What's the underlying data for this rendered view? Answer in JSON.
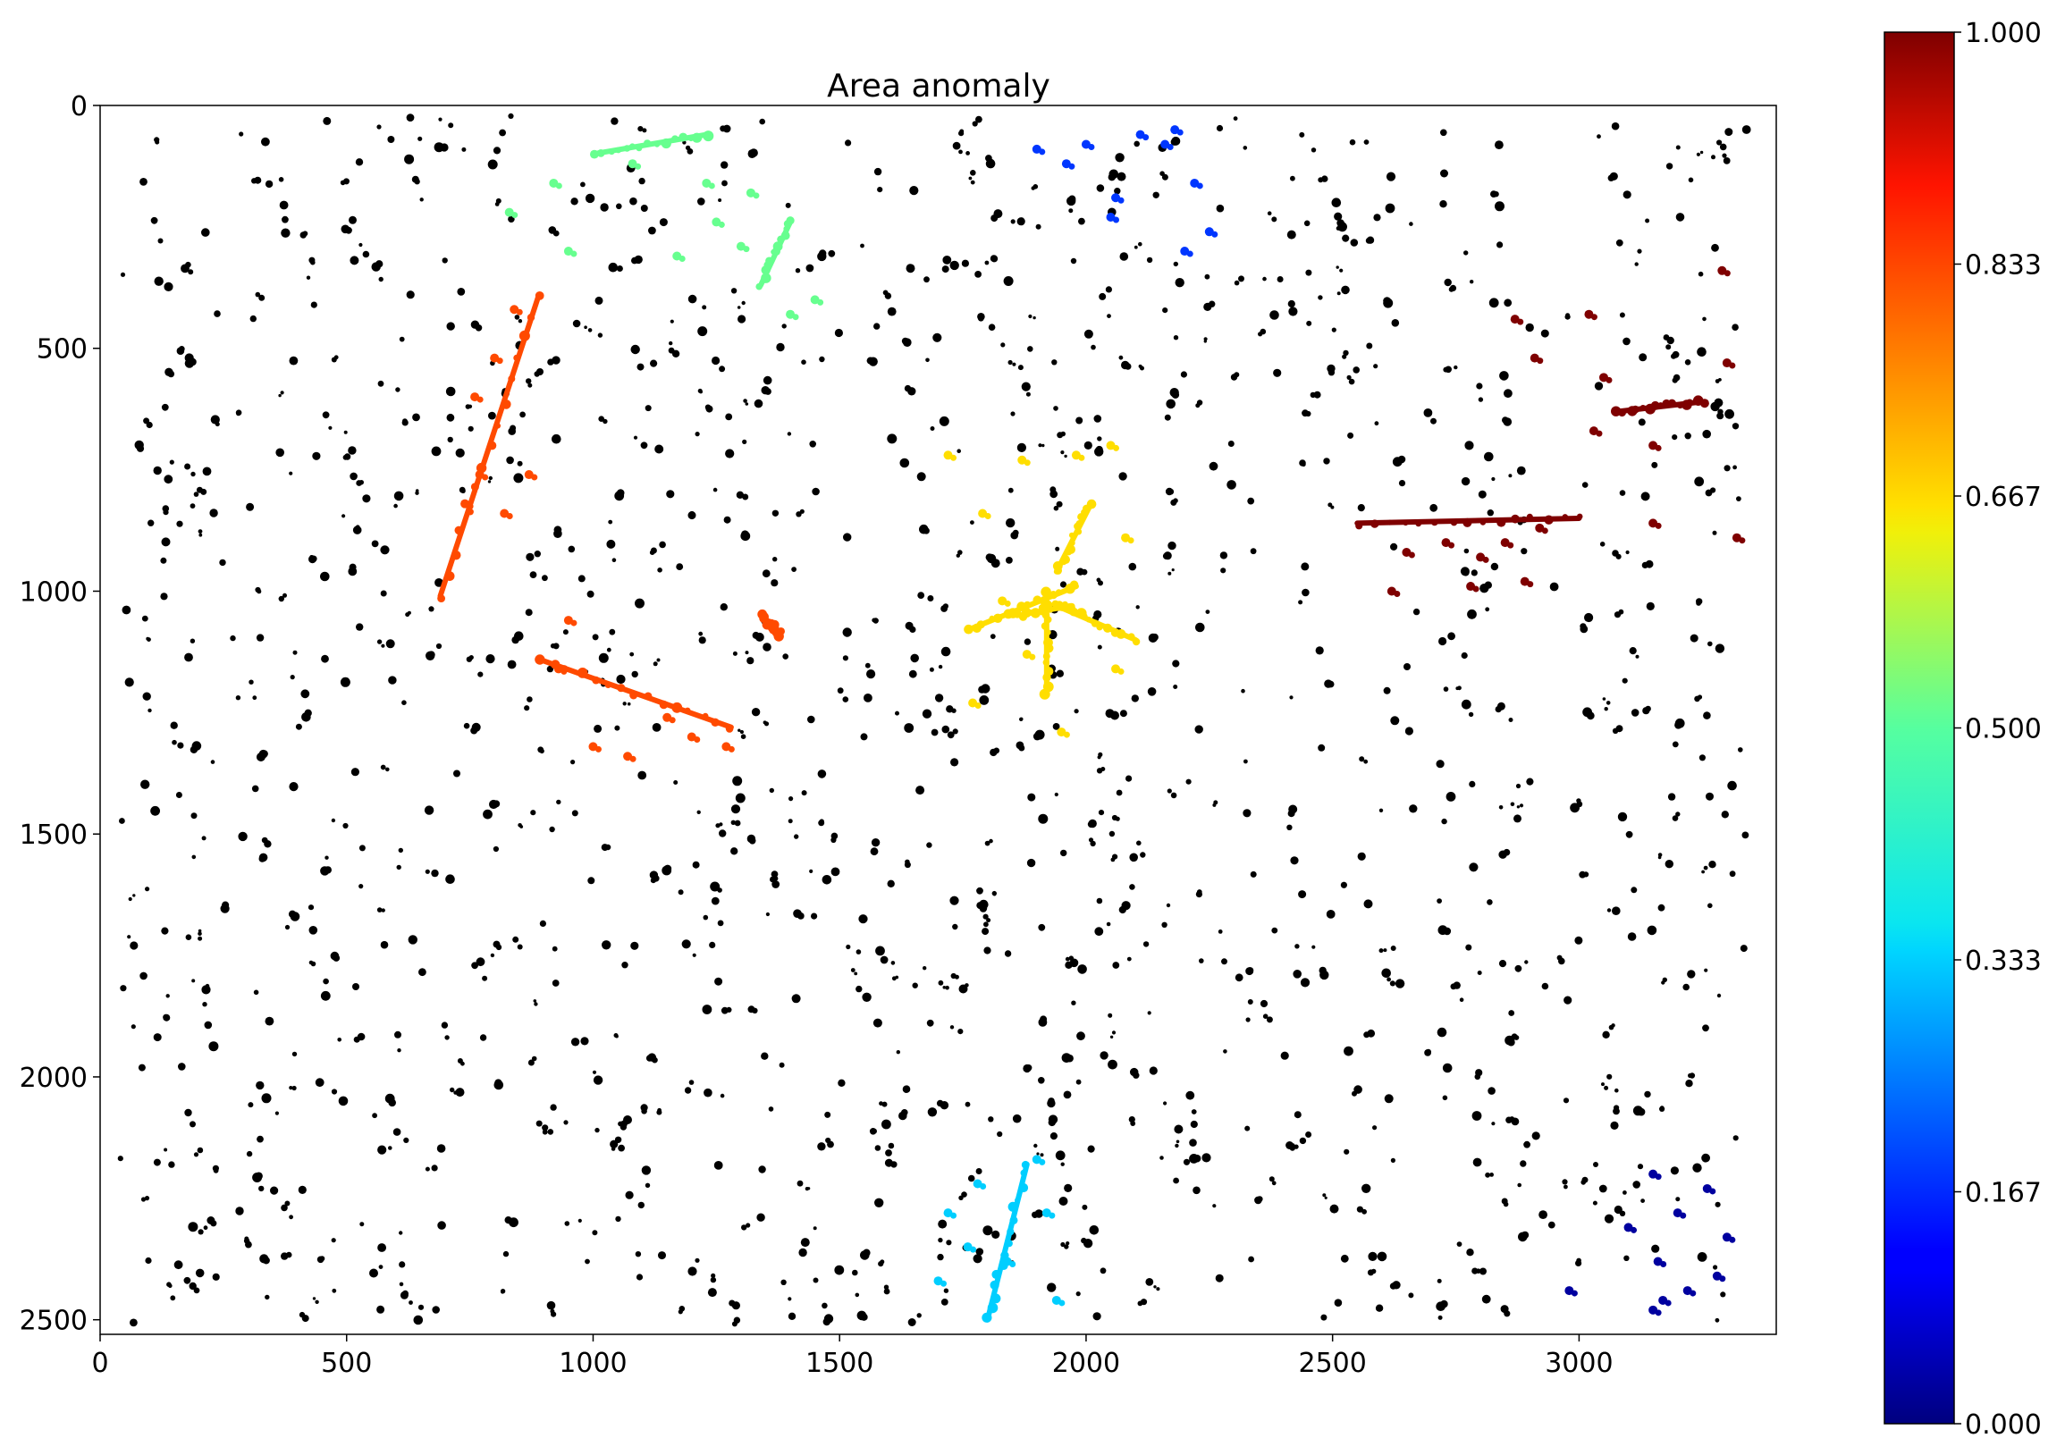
{
  "chart_data": {
    "type": "scatter",
    "title": "Area anomaly",
    "xlabel": "",
    "ylabel": "",
    "xlim": [
      0,
      3400
    ],
    "ylim": [
      2530,
      0
    ],
    "y_inverted": true,
    "grid": false,
    "xticks": [
      0,
      500,
      1000,
      1500,
      2000,
      2500,
      3000
    ],
    "yticks": [
      0,
      500,
      1000,
      1500,
      2000,
      2500
    ],
    "colorbar": {
      "colormap": "jet",
      "range": [
        0,
        1
      ],
      "ticks": [
        "0.000",
        "0.167",
        "0.333",
        "0.500",
        "0.667",
        "0.833",
        "1.000"
      ]
    },
    "background_points_color": "#000000",
    "background_seed": 7,
    "background_count": 1400,
    "highlighted_clusters": [
      {
        "value": 1.0,
        "color": "#7f0000",
        "lines": [
          [
            2550,
            860,
            3000,
            850
          ],
          [
            3080,
            630,
            3250,
            610
          ]
        ],
        "points": [
          [
            2650,
            920
          ],
          [
            2730,
            900
          ],
          [
            2800,
            930
          ],
          [
            2850,
            900
          ],
          [
            2890,
            980
          ],
          [
            2620,
            1000
          ],
          [
            2780,
            990
          ],
          [
            2920,
            870
          ],
          [
            3150,
            860
          ],
          [
            3320,
            890
          ],
          [
            2870,
            440
          ],
          [
            3020,
            430
          ],
          [
            3050,
            560
          ],
          [
            3150,
            700
          ],
          [
            3300,
            530
          ],
          [
            3290,
            340
          ],
          [
            2910,
            520
          ],
          [
            3030,
            670
          ]
        ]
      },
      {
        "value": 0.8,
        "color": "#ff4a00",
        "lines": [
          [
            690,
            1010,
            890,
            390
          ],
          [
            890,
            1140,
            1280,
            1280
          ],
          [
            1340,
            1050,
            1380,
            1090
          ]
        ],
        "points": [
          [
            760,
            600
          ],
          [
            800,
            520
          ],
          [
            840,
            420
          ],
          [
            740,
            820
          ],
          [
            770,
            760
          ],
          [
            820,
            840
          ],
          [
            870,
            760
          ],
          [
            930,
            1160
          ],
          [
            1000,
            1320
          ],
          [
            1200,
            1300
          ],
          [
            1270,
            1320
          ],
          [
            950,
            1060
          ],
          [
            1070,
            1340
          ],
          [
            1150,
            1260
          ]
        ]
      },
      {
        "value": 0.65,
        "color": "#ffde00",
        "lines": [
          [
            1760,
            1080,
            1980,
            990
          ],
          [
            1940,
            960,
            2010,
            820
          ],
          [
            1920,
            1000,
            1920,
            1210
          ],
          [
            1940,
            1030,
            2100,
            1100
          ],
          [
            1860,
            1050,
            1970,
            1030
          ]
        ],
        "points": [
          [
            1720,
            720
          ],
          [
            1790,
            840
          ],
          [
            1770,
            1230
          ],
          [
            1880,
            1130
          ],
          [
            1980,
            720
          ],
          [
            2050,
            700
          ],
          [
            1870,
            730
          ],
          [
            1950,
            1290
          ],
          [
            2080,
            890
          ],
          [
            2060,
            1160
          ],
          [
            1830,
            1020
          ]
        ]
      },
      {
        "value": 0.5,
        "color": "#67ff8f",
        "lines": [
          [
            1000,
            100,
            1230,
            60
          ],
          [
            1340,
            370,
            1400,
            240
          ]
        ],
        "points": [
          [
            830,
            220
          ],
          [
            920,
            160
          ],
          [
            950,
            300
          ],
          [
            1080,
            120
          ],
          [
            1230,
            160
          ],
          [
            1250,
            240
          ],
          [
            1320,
            180
          ],
          [
            1300,
            290
          ],
          [
            1450,
            400
          ],
          [
            1400,
            430
          ],
          [
            1170,
            310
          ]
        ]
      },
      {
        "value": 0.3,
        "color": "#00ceff",
        "lines": [
          [
            1800,
            2500,
            1880,
            2180
          ]
        ],
        "points": [
          [
            1720,
            2280
          ],
          [
            1760,
            2350
          ],
          [
            1700,
            2420
          ],
          [
            1780,
            2220
          ],
          [
            1900,
            2170
          ],
          [
            1940,
            2460
          ],
          [
            1920,
            2280
          ],
          [
            1840,
            2380
          ]
        ]
      },
      {
        "value": 0.15,
        "color": "#0036ff",
        "lines": [],
        "points": [
          [
            1900,
            90
          ],
          [
            1960,
            120
          ],
          [
            2000,
            80
          ],
          [
            2060,
            190
          ],
          [
            2110,
            60
          ],
          [
            2160,
            80
          ],
          [
            2220,
            160
          ],
          [
            2250,
            260
          ],
          [
            2200,
            300
          ],
          [
            2050,
            230
          ],
          [
            2180,
            50
          ]
        ]
      },
      {
        "value": 0.02,
        "color": "#00009f",
        "lines": [],
        "points": [
          [
            3150,
            2200
          ],
          [
            3200,
            2280
          ],
          [
            3160,
            2380
          ],
          [
            3220,
            2440
          ],
          [
            3150,
            2480
          ],
          [
            3260,
            2230
          ],
          [
            3300,
            2330
          ],
          [
            3280,
            2410
          ],
          [
            3100,
            2310
          ],
          [
            2980,
            2440
          ],
          [
            3170,
            2460
          ]
        ]
      }
    ]
  }
}
